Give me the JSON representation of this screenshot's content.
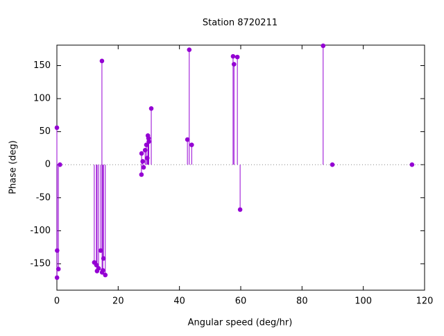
{
  "chart_data": {
    "type": "scatter",
    "title": "Station 8720211",
    "x_label": "Angular speed (deg/hr)",
    "y_label": "Phase (deg)",
    "x": [
      0,
      0.04,
      0.08,
      0.5,
      1,
      12.2,
      12.9,
      13.1,
      13.6,
      14.3,
      14.7,
      14.75,
      15.0,
      15.2,
      15.8,
      27.6,
      27.65,
      28.0,
      28.3,
      28.8,
      29.2,
      29.5,
      29.7,
      29.9,
      30.0,
      30.8,
      42.6,
      43.2,
      44.0,
      57.5,
      57.8,
      58.9,
      59.8,
      86.9,
      89.9,
      115.9
    ],
    "series": [
      {
        "color": "#9400d3",
        "values": [
          56,
          -171,
          -130,
          -158,
          0,
          -148,
          -152,
          -161,
          -157,
          -130,
          157,
          -163,
          -160,
          -142,
          -167,
          -15,
          17,
          5,
          -4,
          22,
          30,
          10,
          44,
          40,
          35,
          85,
          38,
          174,
          30,
          164,
          152,
          163,
          -68,
          180,
          0,
          0
        ]
      }
    ],
    "impulses": true,
    "zero_line": true,
    "xlim": [
      0,
      120
    ],
    "ylim": [
      -190,
      181
    ],
    "xticks": [
      0,
      20,
      40,
      60,
      80,
      100,
      120
    ],
    "yticks": [
      -150,
      -100,
      -50,
      0,
      50,
      100,
      150
    ]
  }
}
